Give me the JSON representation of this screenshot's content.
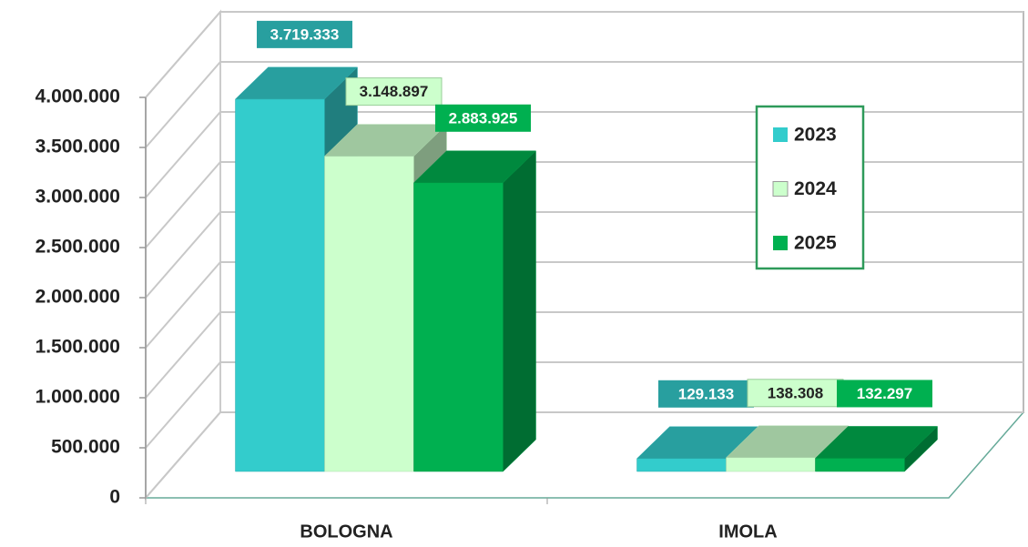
{
  "chart_data": {
    "type": "bar3d",
    "categories": [
      "BOLOGNA",
      "IMOLA"
    ],
    "series": [
      {
        "name": "2023",
        "color": "#33cccc",
        "values": [
          3719333,
          129133
        ],
        "value_labels": [
          "3.719.333",
          "129.133"
        ]
      },
      {
        "name": "2024",
        "color": "#ccffcc",
        "values": [
          3148897,
          138308
        ],
        "value_labels": [
          "3.148.897",
          "138.308"
        ]
      },
      {
        "name": "2025",
        "color": "#00b050",
        "values": [
          2883925,
          132297
        ],
        "value_labels": [
          "2.883.925",
          "132.297"
        ]
      }
    ],
    "ylim": [
      0,
      4000000
    ],
    "yticks": [
      0,
      {
        "value": 500000,
        "label": "500.000"
      },
      {
        "value": 1000000,
        "label": "1.000.000"
      },
      {
        "value": 1500000,
        "label": "1.500.000"
      },
      {
        "value": 2000000,
        "label": "2.000.000"
      },
      {
        "value": 2500000,
        "label": "2.500.000"
      },
      {
        "value": 3000000,
        "label": "3.000.000"
      },
      {
        "value": 3500000,
        "label": "3.500.000"
      },
      {
        "value": 4000000,
        "label": "4.000.000"
      }
    ],
    "grid": true,
    "legend": "upper right"
  }
}
